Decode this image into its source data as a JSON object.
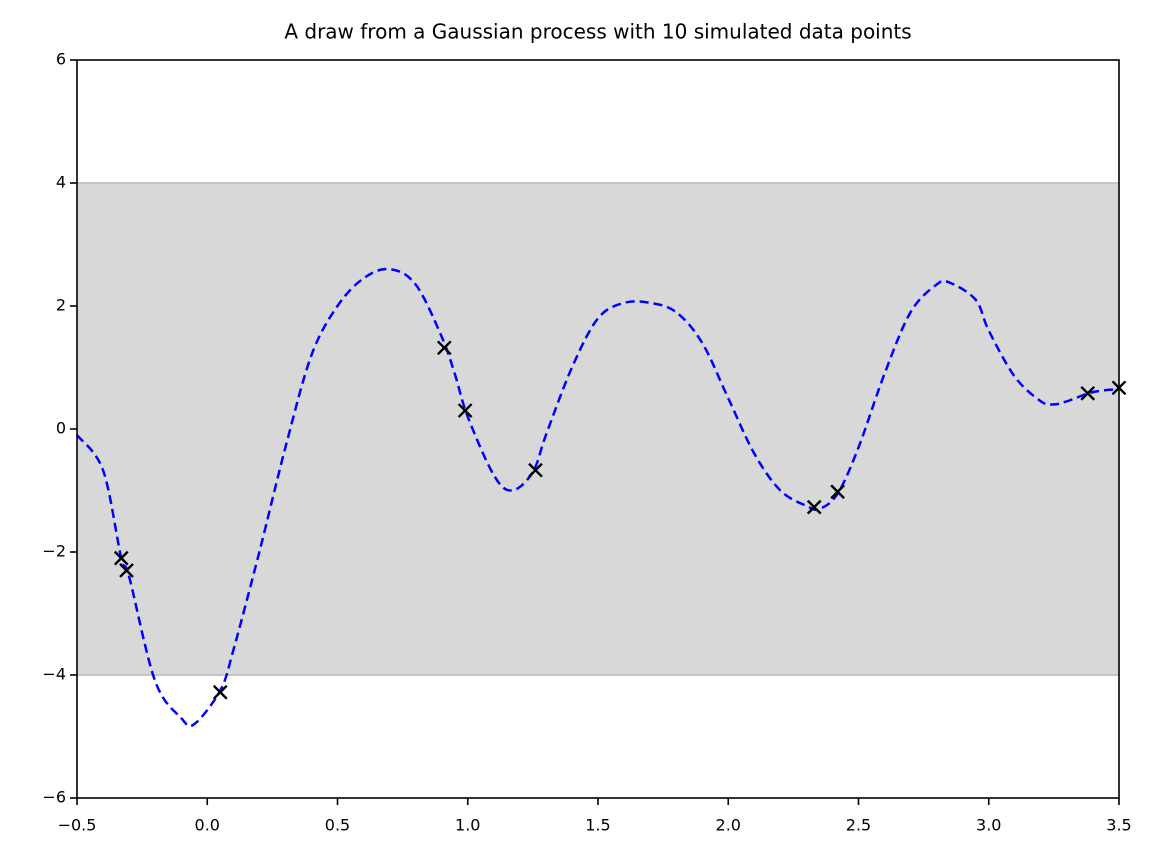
{
  "chart_data": {
    "type": "line",
    "title": "A draw from a Gaussian process with 10 simulated data points",
    "xlim": [
      -0.5,
      3.5
    ],
    "ylim": [
      -6,
      6
    ],
    "xticks": [
      {
        "value": -0.5,
        "label": "−0.5"
      },
      {
        "value": 0,
        "label": "0.0"
      },
      0.5,
      {
        "value": 1,
        "label": "1.0"
      },
      1.5,
      {
        "value": 2,
        "label": "2.0"
      },
      2.5,
      {
        "value": 3,
        "label": "3.0"
      },
      3.5
    ],
    "yticks": [
      {
        "value": -6,
        "label": "−6"
      },
      {
        "value": -4,
        "label": "−4"
      },
      {
        "value": -2,
        "label": "−2"
      },
      0,
      2,
      4,
      6
    ],
    "band": {
      "range": [
        -4,
        4
      ],
      "color": "#d8d8d8"
    },
    "line": {
      "color": "#0000ff",
      "x": [
        -0.5,
        -0.4,
        -0.33,
        -0.3,
        -0.2,
        -0.1,
        -0.05,
        0.05,
        0.1,
        0.2,
        0.3,
        0.4,
        0.5,
        0.6,
        0.7,
        0.8,
        0.9,
        0.95,
        1.0,
        1.1,
        1.17,
        1.25,
        1.3,
        1.4,
        1.5,
        1.6,
        1.7,
        1.8,
        1.9,
        2.0,
        2.1,
        2.2,
        2.3,
        2.35,
        2.42,
        2.5,
        2.6,
        2.7,
        2.8,
        2.85,
        2.95,
        3.0,
        3.1,
        3.2,
        3.25,
        3.3,
        3.4,
        3.5
      ],
      "values": [
        -0.1,
        -0.67,
        -2.1,
        -2.4,
        -4.1,
        -4.7,
        -4.8,
        -4.25,
        -3.6,
        -2.0,
        -0.3,
        1.2,
        2.0,
        2.45,
        2.6,
        2.35,
        1.5,
        0.9,
        0.2,
        -0.75,
        -1.0,
        -0.7,
        -0.1,
        1.0,
        1.8,
        2.05,
        2.05,
        1.9,
        1.4,
        0.5,
        -0.4,
        -1.0,
        -1.25,
        -1.3,
        -1.05,
        -0.3,
        0.9,
        1.9,
        2.35,
        2.38,
        2.1,
        1.6,
        0.85,
        0.45,
        0.4,
        0.45,
        0.6,
        0.65
      ]
    },
    "points": {
      "color": "#000000",
      "x": [
        -0.33,
        -0.31,
        0.05,
        0.91,
        0.99,
        1.26,
        2.33,
        2.42,
        3.38,
        3.5
      ],
      "values": [
        -2.1,
        -2.3,
        -4.28,
        1.32,
        0.3,
        -0.67,
        -1.27,
        -1.02,
        0.58,
        0.67
      ]
    }
  }
}
